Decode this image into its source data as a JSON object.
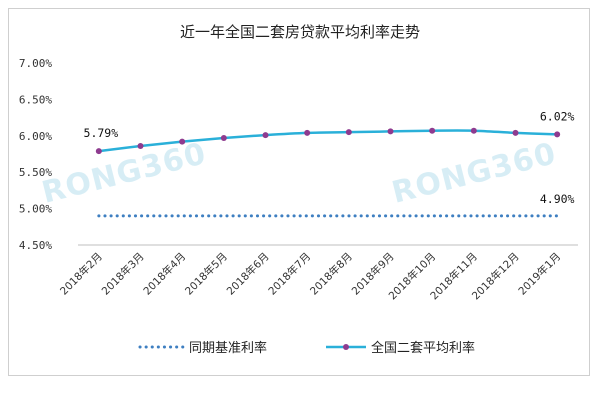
{
  "chart_data": {
    "type": "line",
    "title": "近一年全国二套房贷款平均利率走势",
    "categories": [
      "2018年2月",
      "2018年3月",
      "2018年4月",
      "2018年5月",
      "2018年6月",
      "2018年7月",
      "2018年8月",
      "2018年9月",
      "2018年10月",
      "2018年11月",
      "2018年12月",
      "2019年1月"
    ],
    "ylim": [
      4.5,
      7.0
    ],
    "yticks": [
      "7.00%",
      "6.50%",
      "6.00%",
      "5.50%",
      "5.00%",
      "4.50%"
    ],
    "ytick_values": [
      7.0,
      6.5,
      6.0,
      5.5,
      5.0,
      4.5
    ],
    "grid": false,
    "legend_position": "bottom",
    "series": [
      {
        "name": "同期基准利率",
        "style": "dotted",
        "color": "#3e7fc1",
        "values": [
          4.9,
          4.9,
          4.9,
          4.9,
          4.9,
          4.9,
          4.9,
          4.9,
          4.9,
          4.9,
          4.9,
          4.9
        ]
      },
      {
        "name": "全国二套平均利率",
        "style": "line-markers",
        "color": "#2ab0d9",
        "marker_color": "#8e3b8f",
        "values": [
          5.79,
          5.86,
          5.92,
          5.97,
          6.01,
          6.04,
          6.05,
          6.06,
          6.07,
          6.07,
          6.04,
          6.02
        ]
      }
    ],
    "data_labels": [
      {
        "text": "5.79%",
        "series": 1,
        "index": 0
      },
      {
        "text": "6.02%",
        "series": 1,
        "index": 11
      },
      {
        "text": "4.90%",
        "series": 0,
        "index": 11
      }
    ],
    "watermark": "RONG360"
  }
}
